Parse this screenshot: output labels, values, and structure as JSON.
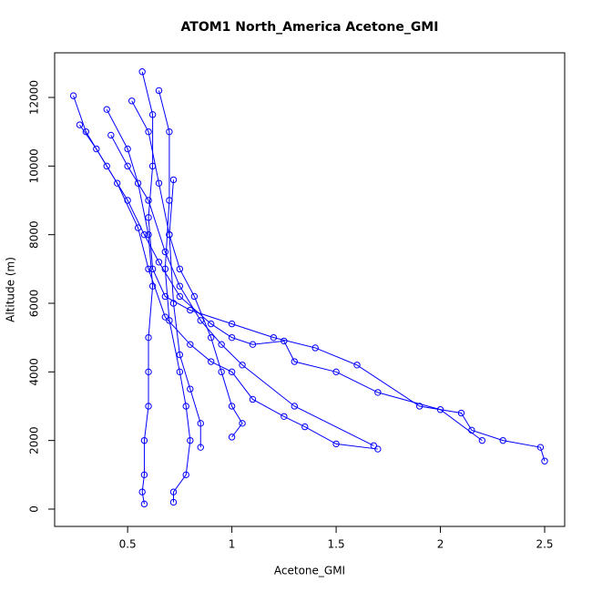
{
  "chart_data": {
    "type": "scatter",
    "title": "ATOM1 North_America Acetone_GMI",
    "x_label": "Acetone_GMI",
    "y_label": "Altitude (m)",
    "xlim": [
      0.15,
      2.596
    ],
    "ylim": [
      -505,
      13301
    ],
    "xticks": [
      0.5,
      1.0,
      1.5,
      2.0,
      2.5
    ],
    "yticks": [
      0,
      2000,
      4000,
      6000,
      8000,
      10000,
      12000
    ],
    "lines": true,
    "series": [
      {
        "color": "#0000ff",
        "x": [
          0.57,
          0.62,
          0.62,
          0.6,
          0.62,
          0.68,
          0.8,
          1.0,
          1.2,
          1.4,
          1.6,
          1.9,
          2.1,
          2.15,
          2.3,
          2.48,
          2.5
        ],
        "values": [
          12750,
          11500,
          10000,
          8500,
          7000,
          6200,
          5800,
          5400,
          5000,
          4700,
          4200,
          3000,
          2800,
          2300,
          2000,
          1800,
          1400
        ]
      },
      {
        "color": "#0000ff",
        "x": [
          0.24,
          0.3,
          0.4,
          0.5,
          0.58,
          0.65,
          0.75,
          0.9,
          1.0,
          1.1,
          1.25,
          1.3,
          1.5,
          1.7,
          2.0,
          2.2
        ],
        "values": [
          12050,
          11000,
          10000,
          9000,
          8000,
          7200,
          6200,
          5400,
          5000,
          4800,
          4900,
          4300,
          4000,
          3400,
          2900,
          2000
        ]
      },
      {
        "color": "#0000ff",
        "x": [
          0.27,
          0.35,
          0.45,
          0.55,
          0.6,
          0.68,
          0.8,
          0.9,
          1.0,
          1.1,
          1.25,
          1.35,
          1.5,
          1.7
        ],
        "values": [
          11200,
          10500,
          9500,
          8200,
          7000,
          5600,
          4800,
          4300,
          4000,
          3200,
          2700,
          2400,
          1900,
          1750
        ]
      },
      {
        "color": "#0000ff",
        "x": [
          0.4,
          0.5,
          0.55,
          0.6,
          0.62,
          0.6,
          0.6,
          0.6,
          0.58,
          0.58,
          0.57,
          0.58
        ],
        "values": [
          11650,
          10500,
          9500,
          8000,
          6500,
          5000,
          4000,
          3000,
          2000,
          1000,
          500,
          150
        ]
      },
      {
        "color": "#0000ff",
        "x": [
          0.52,
          0.6,
          0.65,
          0.7,
          0.72,
          0.75,
          0.8,
          0.85,
          0.85
        ],
        "values": [
          11900,
          11000,
          9500,
          8000,
          6000,
          4500,
          3500,
          2500,
          1800
        ]
      },
      {
        "color": "#0000ff",
        "x": [
          0.65,
          0.7,
          0.7,
          0.68,
          0.7,
          0.75,
          0.78,
          0.8,
          0.78,
          0.72,
          0.72
        ],
        "values": [
          12200,
          11000,
          9000,
          7000,
          5500,
          4000,
          3000,
          2000,
          1000,
          500,
          200
        ]
      },
      {
        "color": "#0000ff",
        "x": [
          0.42,
          0.5,
          0.6,
          0.68,
          0.75,
          0.85,
          0.95,
          1.05,
          1.3,
          1.68
        ],
        "values": [
          10900,
          10000,
          9000,
          7500,
          6500,
          5500,
          4800,
          4200,
          3000,
          1850
        ]
      },
      {
        "color": "#0000ff",
        "x": [
          0.72,
          0.7,
          0.75,
          0.82,
          0.9,
          0.95,
          1.0,
          1.05,
          1.0
        ],
        "values": [
          9600,
          8000,
          7000,
          6200,
          5000,
          4000,
          3000,
          2500,
          2100
        ]
      }
    ]
  }
}
